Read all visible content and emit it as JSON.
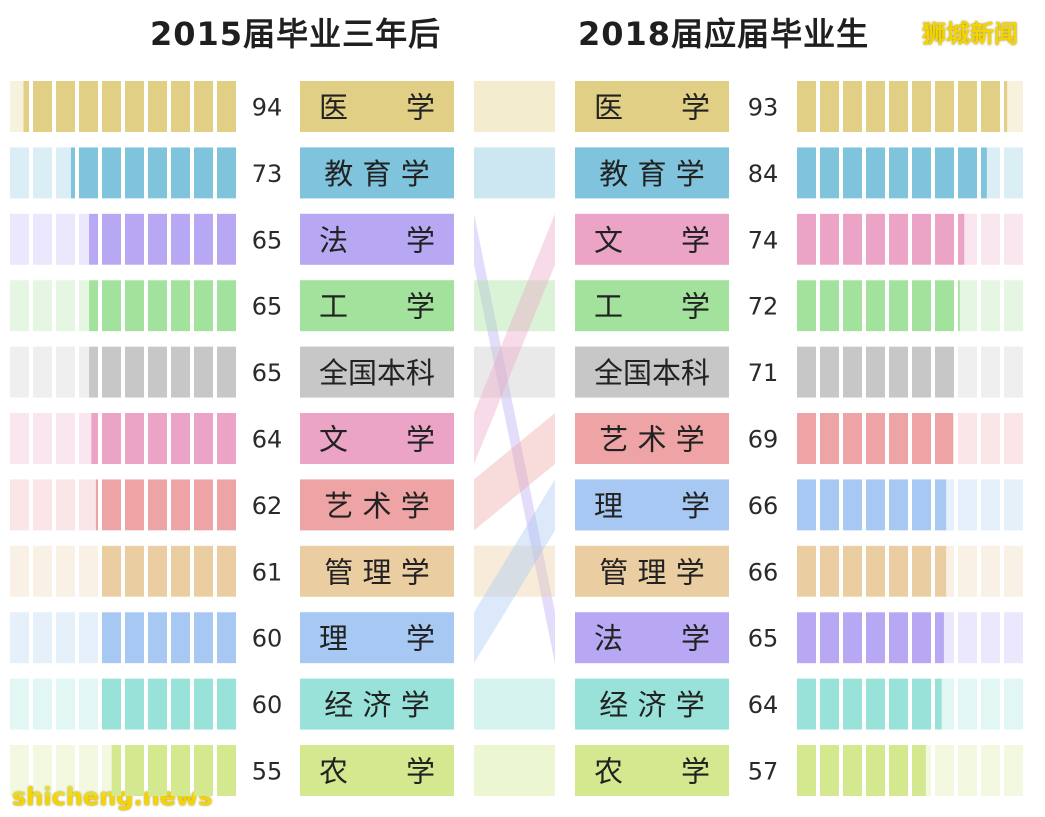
{
  "titles": {
    "left": "2015届毕业三年后",
    "right": "2018届应届毕业生"
  },
  "watermarks": {
    "top": "狮城新闻",
    "bottom": "shicheng.news"
  },
  "colors": {
    "医学": "#e1cf86",
    "教育学": "#7fc3dd",
    "法学": "#b8a8f3",
    "工学": "#a2e29c",
    "全国本科": "#c7c7c7",
    "文学": "#eba4c6",
    "艺术学": "#eea4a4",
    "管理学": "#ebcda2",
    "理学": "#a7c8f2",
    "经济学": "#98e2d9",
    "农学": "#d3e88f"
  },
  "chart_data": {
    "type": "bar",
    "series": [
      {
        "name": "2015届毕业三年后",
        "items": [
          {
            "key": "医学",
            "label": "医　　学",
            "value": 94
          },
          {
            "key": "教育学",
            "label": "教 育 学",
            "value": 73
          },
          {
            "key": "法学",
            "label": "法　　学",
            "value": 65
          },
          {
            "key": "工学",
            "label": "工　　学",
            "value": 65
          },
          {
            "key": "全国本科",
            "label": "全国本科",
            "value": 65
          },
          {
            "key": "文学",
            "label": "文　　学",
            "value": 64
          },
          {
            "key": "艺术学",
            "label": "艺 术 学",
            "value": 62
          },
          {
            "key": "管理学",
            "label": "管 理 学",
            "value": 61
          },
          {
            "key": "理学",
            "label": "理　　学",
            "value": 60
          },
          {
            "key": "经济学",
            "label": "经 济 学",
            "value": 60
          },
          {
            "key": "农学",
            "label": "农　　学",
            "value": 55
          }
        ]
      },
      {
        "name": "2018届应届毕业生",
        "items": [
          {
            "key": "医学",
            "label": "医　　学",
            "value": 93
          },
          {
            "key": "教育学",
            "label": "教 育 学",
            "value": 84
          },
          {
            "key": "文学",
            "label": "文　　学",
            "value": 74
          },
          {
            "key": "工学",
            "label": "工　　学",
            "value": 72
          },
          {
            "key": "全国本科",
            "label": "全国本科",
            "value": 71
          },
          {
            "key": "艺术学",
            "label": "艺 术 学",
            "value": 69
          },
          {
            "key": "理学",
            "label": "理　　学",
            "value": 66
          },
          {
            "key": "管理学",
            "label": "管 理 学",
            "value": 66
          },
          {
            "key": "法学",
            "label": "法　　学",
            "value": 65
          },
          {
            "key": "经济学",
            "label": "经 济 学",
            "value": 64
          },
          {
            "key": "农学",
            "label": "农　　学",
            "value": 57
          }
        ]
      }
    ],
    "ylim": [
      0,
      100
    ]
  }
}
